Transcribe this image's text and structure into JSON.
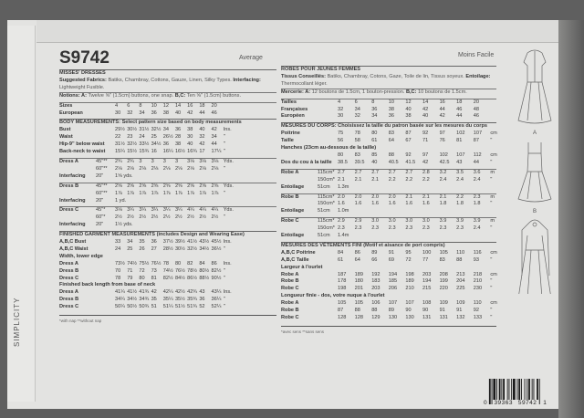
{
  "brand": "SIMPLICITY",
  "left": {
    "code": "S9742",
    "level": "Average",
    "rows": [
      {
        "type": "heading",
        "text": "MISSES' DRESSES"
      },
      {
        "type": "text",
        "parts": [
          {
            "b": "Suggested Fabrics: "
          },
          {
            "t": "Batiks, Chambray, Cottons, Gauze, Linen, Silky Types. "
          },
          {
            "b": "Interfacing: "
          },
          {
            "t": "Lightweight Fusible."
          }
        ]
      },
      {
        "type": "text",
        "rule": true,
        "parts": [
          {
            "b": "Notions: A: "
          },
          {
            "t": "Twelve ⅝\" (1.5cm) buttons, one snap. "
          },
          {
            "b": "B,C: "
          },
          {
            "t": "Ten ⅝\" (1.5cm) buttons."
          }
        ]
      },
      {
        "type": "data",
        "sep": true,
        "label": "Sizes",
        "sub": "",
        "values": [
          "4",
          "6",
          "8",
          "10",
          "12",
          "14",
          "16",
          "18",
          "20"
        ],
        "unit": ""
      },
      {
        "type": "data",
        "label": "European",
        "sub": "",
        "values": [
          "30",
          "32",
          "34",
          "36",
          "38",
          "40",
          "42",
          "44",
          "46"
        ],
        "unit": ""
      },
      {
        "type": "heading",
        "text": "BODY MEASUREMENTS: Select pattern size based on body measurements"
      },
      {
        "type": "data",
        "label": "Bust",
        "sub": "",
        "values": [
          "29½",
          "30½",
          "31½",
          "32½",
          "34",
          "36",
          "38",
          "40",
          "42"
        ],
        "unit": "Ins."
      },
      {
        "type": "data",
        "label": "Waist",
        "sub": "",
        "values": [
          "22",
          "23",
          "24",
          "25",
          "26½",
          "28",
          "30",
          "32",
          "34"
        ],
        "unit": "\""
      },
      {
        "type": "data",
        "label": "Hip-9\" below waist",
        "sub": "",
        "values": [
          "31½",
          "32½",
          "33½",
          "34½",
          "36",
          "38",
          "40",
          "42",
          "44"
        ],
        "unit": "\""
      },
      {
        "type": "data",
        "label": "Back-neck to waist",
        "sub": "",
        "values": [
          "15¼",
          "15½",
          "15¾",
          "16",
          "16¼",
          "16½",
          "16¾",
          "17",
          "17¼"
        ],
        "unit": "\""
      },
      {
        "type": "data",
        "sep": true,
        "label": "Dress A",
        "sub": "45\"**",
        "values": [
          "2¾",
          "2¾",
          "3",
          "3",
          "3",
          "3",
          "3⅛",
          "3⅛",
          "3⅛"
        ],
        "unit": "Yds."
      },
      {
        "type": "data",
        "label": "",
        "sub": "60\"**",
        "values": [
          "2⅛",
          "2⅛",
          "2⅛",
          "2⅛",
          "2⅛",
          "2⅛",
          "2⅛",
          "2⅛",
          "2⅛"
        ],
        "unit": "\""
      },
      {
        "type": "data",
        "label": "Interfacing",
        "sub": "20\"",
        "values": [
          "1⅝ yds."
        ],
        "unit": ""
      },
      {
        "type": "data",
        "sep": true,
        "label": "Dress B",
        "sub": "45\"**",
        "values": [
          "2⅝",
          "2⅝",
          "2⅝",
          "2⅝",
          "2⅝",
          "2⅝",
          "2⅝",
          "2⅝",
          "2⅝"
        ],
        "unit": "Yds."
      },
      {
        "type": "data",
        "label": "",
        "sub": "60\"**",
        "values": [
          "1⅞",
          "1⅞",
          "1⅞",
          "1⅞",
          "1⅞",
          "1⅞",
          "1⅞",
          "1⅞",
          "1⅞"
        ],
        "unit": "\""
      },
      {
        "type": "data",
        "label": "Interfacing",
        "sub": "20\"",
        "values": [
          "1 yd."
        ],
        "unit": ""
      },
      {
        "type": "data",
        "sep": true,
        "label": "Dress C",
        "sub": "45\"*",
        "values": [
          "3⅛",
          "3¼",
          "3¼",
          "3¼",
          "3¼",
          "3¼",
          "4¼",
          "4¼",
          "4¼"
        ],
        "unit": "Yds."
      },
      {
        "type": "data",
        "label": "",
        "sub": "60\"*",
        "values": [
          "2½",
          "2½",
          "2½",
          "2½",
          "2½",
          "2½",
          "2½",
          "2½",
          "2½"
        ],
        "unit": "\""
      },
      {
        "type": "data",
        "label": "Interfacing",
        "sub": "20\"",
        "values": [
          "1½ yds."
        ],
        "unit": ""
      },
      {
        "type": "heading",
        "text": "FINISHED GARMENT MEASUREMENTS (includes Design and Wearing Ease)"
      },
      {
        "type": "data",
        "label": "A,B,C Bust",
        "sub": "",
        "values": [
          "33",
          "34",
          "35",
          "36",
          "37½",
          "39½",
          "41½",
          "43½",
          "45½"
        ],
        "unit": "Ins."
      },
      {
        "type": "data",
        "label": "A,B,C Waist",
        "sub": "",
        "values": [
          "24",
          "25",
          "26",
          "27",
          "28½",
          "30½",
          "32½",
          "34½",
          "36½"
        ],
        "unit": "\""
      },
      {
        "type": "label",
        "text": "Width, lower edge"
      },
      {
        "type": "data",
        "label": "Dress A",
        "sub": "",
        "values": [
          "73½",
          "74½",
          "75½",
          "76½",
          "78",
          "80",
          "82",
          "84",
          "86"
        ],
        "unit": "Ins."
      },
      {
        "type": "data",
        "label": "Dress B",
        "sub": "",
        "values": [
          "70",
          "71",
          "72",
          "73",
          "74½",
          "76½",
          "78½",
          "80½",
          "82½"
        ],
        "unit": "\""
      },
      {
        "type": "data",
        "label": "Dress C",
        "sub": "",
        "values": [
          "78",
          "79",
          "80",
          "81",
          "82½",
          "84½",
          "86½",
          "88½",
          "90½"
        ],
        "unit": "\""
      },
      {
        "type": "label",
        "text": "Finished back length from base of neck"
      },
      {
        "type": "data",
        "label": "Dress A",
        "sub": "",
        "values": [
          "41¼",
          "41½",
          "41¾",
          "42",
          "42¼",
          "42½",
          "42¾",
          "43",
          "43¼"
        ],
        "unit": "Ins."
      },
      {
        "type": "data",
        "label": "Dress B",
        "sub": "",
        "values": [
          "34¼",
          "34½",
          "34¾",
          "35",
          "35¼",
          "35½",
          "35¾",
          "36",
          "36¼"
        ],
        "unit": "\""
      },
      {
        "type": "data",
        "label": "Dress C",
        "sub": "",
        "values": [
          "50¼",
          "50½",
          "50¾",
          "51",
          "51¼",
          "51½",
          "51¾",
          "52",
          "52¼"
        ],
        "unit": "\""
      },
      {
        "type": "foot",
        "text": "*with nap   **without nap"
      }
    ]
  },
  "right": {
    "level": "Moins Facile",
    "rows": [
      {
        "type": "heading",
        "text": "ROBES POUR JEUNES FEMMES"
      },
      {
        "type": "text",
        "parts": [
          {
            "b": "Tissus Conseillés: "
          },
          {
            "t": "Batiks, Chambray, Cotons, Gaze, Toile de lin, Tissus soyeux. "
          },
          {
            "b": "Entoilage: "
          },
          {
            "t": "Thermocollant léger."
          }
        ]
      },
      {
        "type": "text",
        "rule": true,
        "parts": [
          {
            "b": "Mercerie: A: "
          },
          {
            "t": "12 boutons de 1.5cm, 1 bouton-pression. "
          },
          {
            "b": "B,C: "
          },
          {
            "t": "10 boutons de 1.5cm."
          }
        ]
      },
      {
        "type": "data",
        "sep": true,
        "label": "Tailles",
        "sub": "",
        "values": [
          "4",
          "6",
          "8",
          "10",
          "12",
          "14",
          "16",
          "18",
          "20"
        ],
        "unit": ""
      },
      {
        "type": "data",
        "label": "Françaises",
        "sub": "",
        "values": [
          "32",
          "34",
          "36",
          "38",
          "40",
          "42",
          "44",
          "46",
          "48"
        ],
        "unit": ""
      },
      {
        "type": "data",
        "label": "Européen",
        "sub": "",
        "values": [
          "30",
          "32",
          "34",
          "36",
          "38",
          "40",
          "42",
          "44",
          "46"
        ],
        "unit": ""
      },
      {
        "type": "heading",
        "text": "MESURES DU CORPS: Choisissez la taille du patron basée sur les mesures du corps"
      },
      {
        "type": "data",
        "label": "Poitrine",
        "sub": "",
        "values": [
          "75",
          "78",
          "80",
          "83",
          "87",
          "92",
          "97",
          "102",
          "107"
        ],
        "unit": "cm"
      },
      {
        "type": "data",
        "label": "Taille",
        "sub": "",
        "values": [
          "56",
          "58",
          "61",
          "64",
          "67",
          "71",
          "76",
          "81",
          "87"
        ],
        "unit": "\""
      },
      {
        "type": "label",
        "text": "Hanches (23cm au-dessous de la taille)"
      },
      {
        "type": "data",
        "label": "",
        "sub": "",
        "values": [
          "80",
          "83",
          "85",
          "88",
          "92",
          "97",
          "102",
          "107",
          "112"
        ],
        "unit": "cm"
      },
      {
        "type": "data",
        "label": "Dos du cou à la taille",
        "sub": "",
        "values": [
          "38.5",
          "39.5",
          "40",
          "40.5",
          "41.5",
          "42",
          "42.5",
          "43",
          "44"
        ],
        "unit": "\""
      },
      {
        "type": "data",
        "sep": true,
        "label": "Robe A",
        "sub": "115cm*",
        "values": [
          "2.7",
          "2.7",
          "2.7",
          "2.7",
          "2.7",
          "2.8",
          "3.2",
          "3.5",
          "3.6"
        ],
        "unit": "m"
      },
      {
        "type": "data",
        "label": "",
        "sub": "150cm*",
        "values": [
          "2.1",
          "2.1",
          "2.1",
          "2.2",
          "2.2",
          "2.2",
          "2.4",
          "2.4",
          "2.4"
        ],
        "unit": "\""
      },
      {
        "type": "data",
        "label": "Entoilage",
        "sub": "51cm",
        "values": [
          "1.3m"
        ],
        "unit": ""
      },
      {
        "type": "data",
        "sep": true,
        "label": "Robe B",
        "sub": "115cm*",
        "values": [
          "2.0",
          "2.0",
          "2.0",
          "2.0",
          "2.1",
          "2.1",
          "2.1",
          "2.2",
          "2.3"
        ],
        "unit": "m"
      },
      {
        "type": "data",
        "label": "",
        "sub": "150cm*",
        "values": [
          "1.6",
          "1.6",
          "1.6",
          "1.6",
          "1.6",
          "1.6",
          "1.8",
          "1.8",
          "1.8"
        ],
        "unit": "\""
      },
      {
        "type": "data",
        "label": "Entoilage",
        "sub": "51cm",
        "values": [
          "1.0m"
        ],
        "unit": ""
      },
      {
        "type": "data",
        "sep": true,
        "label": "Robe C",
        "sub": "115cm*",
        "values": [
          "2.9",
          "2.9",
          "3.0",
          "3.0",
          "3.0",
          "3.0",
          "3.9",
          "3.9",
          "3.9"
        ],
        "unit": "m"
      },
      {
        "type": "data",
        "label": "",
        "sub": "150cm*",
        "values": [
          "2.3",
          "2.3",
          "2.3",
          "2.3",
          "2.3",
          "2.3",
          "2.3",
          "2.3",
          "2.4"
        ],
        "unit": "\""
      },
      {
        "type": "data",
        "label": "Entoilage",
        "sub": "51cm",
        "values": [
          "1.4m"
        ],
        "unit": ""
      },
      {
        "type": "heading",
        "text": "MESURES DES VÊTEMENTS FINI (Motif et aisance de port compris)"
      },
      {
        "type": "data",
        "label": "A,B,C Poitrine",
        "sub": "",
        "values": [
          "84",
          "86",
          "89",
          "91",
          "95",
          "100",
          "105",
          "110",
          "116"
        ],
        "unit": "cm"
      },
      {
        "type": "data",
        "label": "A,B,C Taille",
        "sub": "",
        "values": [
          "61",
          "64",
          "66",
          "69",
          "72",
          "77",
          "83",
          "88",
          "93"
        ],
        "unit": "\""
      },
      {
        "type": "label",
        "text": "Largeur à l'ourlet"
      },
      {
        "type": "data",
        "label": "Robe A",
        "sub": "",
        "values": [
          "187",
          "189",
          "192",
          "194",
          "198",
          "203",
          "208",
          "213",
          "218"
        ],
        "unit": "cm"
      },
      {
        "type": "data",
        "label": "Robe B",
        "sub": "",
        "values": [
          "178",
          "180",
          "183",
          "185",
          "189",
          "194",
          "199",
          "204",
          "210"
        ],
        "unit": "\""
      },
      {
        "type": "data",
        "label": "Robe C",
        "sub": "",
        "values": [
          "198",
          "201",
          "203",
          "206",
          "210",
          "215",
          "220",
          "225",
          "230"
        ],
        "unit": "\""
      },
      {
        "type": "label",
        "text": "Longueur finie - dos, votre nuque à l'ourlet"
      },
      {
        "type": "data",
        "label": "Robe A",
        "sub": "",
        "values": [
          "105",
          "105",
          "106",
          "107",
          "107",
          "108",
          "109",
          "109",
          "110"
        ],
        "unit": "cm"
      },
      {
        "type": "data",
        "label": "Robe B",
        "sub": "",
        "values": [
          "87",
          "88",
          "88",
          "89",
          "90",
          "90",
          "91",
          "91",
          "92"
        ],
        "unit": "\""
      },
      {
        "type": "data",
        "label": "Robe C",
        "sub": "",
        "values": [
          "128",
          "128",
          "129",
          "130",
          "130",
          "131",
          "131",
          "132",
          "133"
        ],
        "unit": "\""
      },
      {
        "type": "foot",
        "text": "*avec sens   **sans sens"
      }
    ]
  },
  "views": [
    "A",
    "B",
    "C"
  ],
  "barcode": {
    "lead": "0",
    "left": "39363",
    "right": "59742",
    "trail": "1"
  }
}
